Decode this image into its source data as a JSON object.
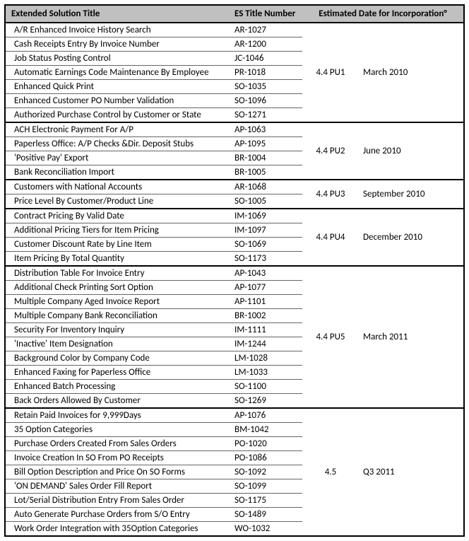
{
  "header": {
    "title_col": "Extended Solution Title",
    "es_col": "ES Title Number",
    "est_col": "Estimated Date for Incorporation°"
  },
  "groups": [
    {
      "pu": "4.4 PU1",
      "date": "March 2010",
      "rows": [
        {
          "title": "A/R Enhanced Invoice History Search",
          "es": "AR-1027"
        },
        {
          "title": "Cash Receipts Entry By Invoice Number",
          "es": "AR-1200"
        },
        {
          "title": "Job Status Posting Control",
          "es": "JC-1046"
        },
        {
          "title": "Automatic Earnings Code Maintenance By Employee",
          "es": "PR-1018"
        },
        {
          "title": "Enhanced Quick Print",
          "es": "SO-1035"
        },
        {
          "title": "Enhanced Customer PO Number Validation",
          "es": "SO-1096"
        },
        {
          "title": "Authorized Purchase Control by Customer or State",
          "es": "SO-1271"
        }
      ]
    },
    {
      "pu": "4.4 PU2",
      "date": "June 2010",
      "rows": [
        {
          "title": "ACH Electronic Payment For A/P",
          "es": "AP-1063"
        },
        {
          "title": "Paperless Office: A/P Checks &Dir. Deposit Stubs",
          "es": "AP-1095"
        },
        {
          "title": "'Positive Pay' Export",
          "es": "BR-1004"
        },
        {
          "title": "Bank Reconciliation Import",
          "es": "BR-1005"
        }
      ]
    },
    {
      "pu": "4.4 PU3",
      "date": "September 2010",
      "rows": [
        {
          "title": "Customers with National Accounts",
          "es": "AR-1068"
        },
        {
          "title": "Price Level By Customer/Product Line",
          "es": "SO-1005"
        }
      ]
    },
    {
      "pu": "4.4 PU4",
      "date": "December 2010",
      "rows": [
        {
          "title": "Contract Pricing By Valid Date",
          "es": "IM-1069"
        },
        {
          "title": "Additional Pricing Tiers for Item Pricing",
          "es": "IM-1097"
        },
        {
          "title": "Customer Discount Rate by Line Item",
          "es": "SO-1069"
        },
        {
          "title": "Item Pricing By Total Quantity",
          "es": "SO-1173"
        }
      ]
    },
    {
      "pu": "4.4 PU5",
      "date": "March 2011",
      "rows": [
        {
          "title": "Distribution Table For Invoice Entry",
          "es": "AP-1043"
        },
        {
          "title": "Additional Check Printing Sort Option",
          "es": "AP-1077"
        },
        {
          "title": "Multiple Company Aged Invoice Report",
          "es": "AP-1101"
        },
        {
          "title": "Multiple Company Bank Reconciliation",
          "es": "BR-1002"
        },
        {
          "title": "Security For Inventory Inquiry",
          "es": "IM-1111"
        },
        {
          "title": "'Inactive' Item Designation",
          "es": "IM-1244"
        },
        {
          "title": "Background Color by Company Code",
          "es": "LM-1028"
        },
        {
          "title": "Enhanced Faxing for Paperless Office",
          "es": "LM-1033"
        },
        {
          "title": "Enhanced Batch Processing",
          "es": "SO-1100"
        },
        {
          "title": "Back Orders Allowed By Customer",
          "es": "SO-1269"
        }
      ]
    },
    {
      "pu": "4.5",
      "date": "Q3 2011",
      "rows": [
        {
          "title": "Retain Paid Invoices for 9,999Days",
          "es": "AP-1076"
        },
        {
          "title": "35 Option Categories",
          "es": "BM-1042"
        },
        {
          "title": "Purchase Orders Created From Sales Orders",
          "es": "PO-1020"
        },
        {
          "title": "Invoice Creation In SO From PO Receipts",
          "es": "PO-1086"
        },
        {
          "title": "Bill Option Description and Price On SO Forms",
          "es": "SO-1092"
        },
        {
          "title": "'ON DEMAND' Sales Order Fill Report",
          "es": "SO-1099"
        },
        {
          "title": "Lot/Serial Distribution Entry From Sales Order",
          "es": "SO-1175"
        },
        {
          "title": "Auto Generate Purchase Orders from S/O Entry",
          "es": "SO-1489"
        },
        {
          "title": "Work Order Integration with 35Option Categories",
          "es": "WO-1032"
        }
      ]
    }
  ]
}
